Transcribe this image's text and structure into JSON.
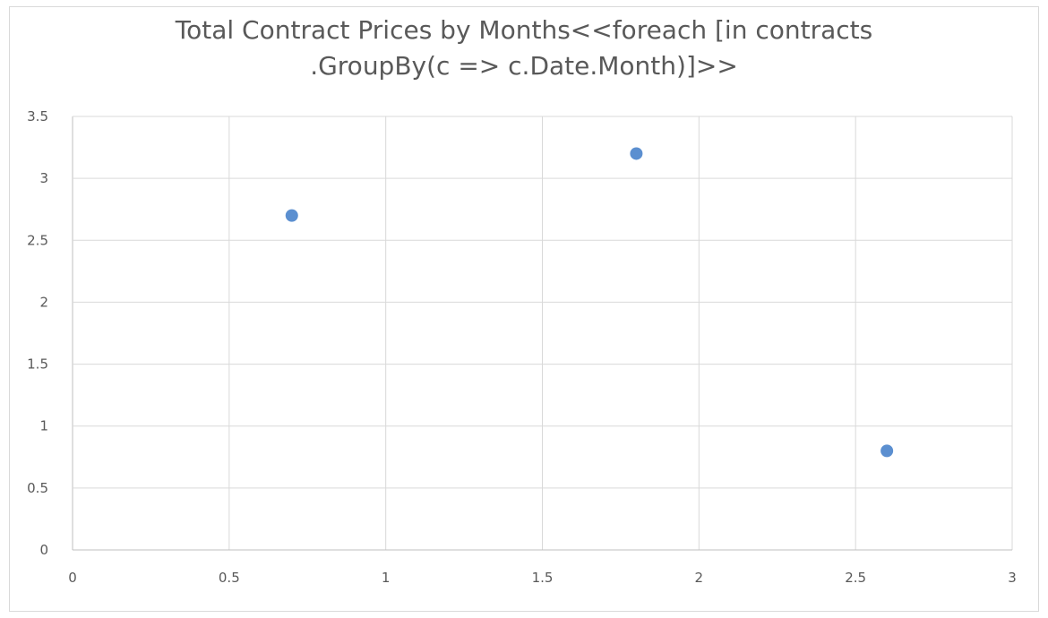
{
  "chart_data": {
    "type": "scatter",
    "title_lines": [
      "Total Contract Prices by Months<<foreach [in contracts",
      ".GroupBy(c => c.Date.Month)]>>"
    ],
    "xlabel": "",
    "ylabel": "",
    "xlim": [
      0,
      3
    ],
    "ylim": [
      0,
      3.5
    ],
    "x_ticks": [
      "0",
      "0.5",
      "1",
      "1.5",
      "2",
      "2.5",
      "3"
    ],
    "y_ticks": [
      "0",
      "0.5",
      "1",
      "1.5",
      "2",
      "2.5",
      "3",
      "3.5"
    ],
    "grid": true,
    "legend": "none",
    "series": [
      {
        "color": "#5b8fd0",
        "points": [
          {
            "x": 0.7,
            "y": 2.7
          },
          {
            "x": 1.8,
            "y": 3.2
          },
          {
            "x": 2.6,
            "y": 0.8
          }
        ]
      }
    ],
    "colors": {
      "grid": "#d9d9d9",
      "axis": "#bfbfbf",
      "text": "#595959"
    }
  }
}
